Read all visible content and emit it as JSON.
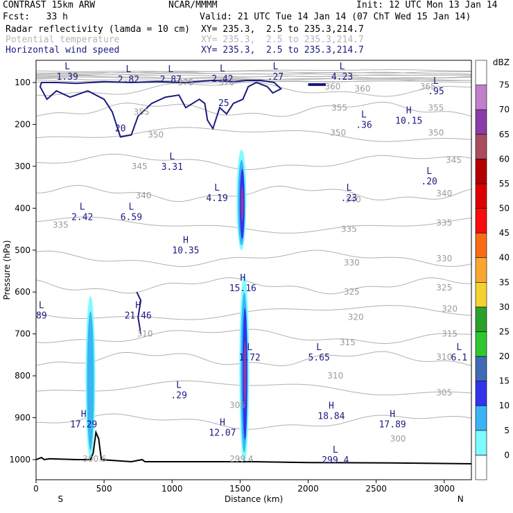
{
  "header": {
    "title": "CONTRAST 15km ARW",
    "org": "NCAR/MMMM",
    "init": "Init: 12 UTC Mon 13 Jan 14",
    "fcst": "Fcst:   33 h",
    "valid": "Valid: 21 UTC Tue 14 Jan 14 (07 ChT Wed 15 Jan 14)",
    "fields": [
      {
        "name": "Radar reflectivity (lamda = 10 cm)",
        "xy": "XY= 235.3,  2.5 to 235.3,214.7",
        "color": "#000000"
      },
      {
        "name": "Potential temperature",
        "xy": "XY= 235.3,  2.5 to 235.3,214.7",
        "color": "#b4b4b4"
      },
      {
        "name": "Horizontal wind speed",
        "xy": "XY= 235.3,  2.5 to 235.3,214.7",
        "color": "#1a1a80"
      }
    ]
  },
  "chart_data": {
    "type": "cross-section",
    "xlabel": "Distance (km)",
    "ylabel": "Pressure (hPa)",
    "xlim": [
      0,
      3200
    ],
    "ylim": [
      1050,
      70
    ],
    "x_ticks": [
      0,
      500,
      1000,
      1500,
      2000,
      2500,
      3000
    ],
    "y_ticks": [
      100,
      200,
      300,
      400,
      500,
      600,
      700,
      800,
      900,
      1000
    ],
    "x_end_labels": {
      "left": "S",
      "right": "N"
    },
    "colorbar": {
      "unit": "dBZ",
      "levels": [
        "0",
        "5",
        "10",
        "15",
        "20",
        "25",
        "30",
        "35",
        "40",
        "45",
        "50",
        "55",
        "60",
        "65",
        "70",
        "75"
      ],
      "colors": [
        "#ffffff",
        "#7ffbff",
        "#39b5f5",
        "#3333ee",
        "#3f6ab4",
        "#2ec830",
        "#2aa12a",
        "#f5d232",
        "#f8a830",
        "#f86c18",
        "#f80c0c",
        "#dc0000",
        "#b40000",
        "#a84c60",
        "#8c3ca8",
        "#c080c8",
        "#ffffff"
      ]
    },
    "theta_labels": [
      {
        "value": "375",
        "x": 1100,
        "p": 100
      },
      {
        "value": "370",
        "x": 1400,
        "p": 100
      },
      {
        "value": "360",
        "x": 2180,
        "p": 110
      },
      {
        "value": "360",
        "x": 2400,
        "p": 115
      },
      {
        "value": "365",
        "x": 2880,
        "p": 110
      },
      {
        "value": "355",
        "x": 775,
        "p": 170
      },
      {
        "value": "355",
        "x": 2230,
        "p": 160
      },
      {
        "value": "355",
        "x": 2940,
        "p": 160
      },
      {
        "value": "350",
        "x": 880,
        "p": 225
      },
      {
        "value": "350",
        "x": 2220,
        "p": 220
      },
      {
        "value": "350",
        "x": 2940,
        "p": 220
      },
      {
        "value": "345",
        "x": 760,
        "p": 300
      },
      {
        "value": "345",
        "x": 3070,
        "p": 285
      },
      {
        "value": "340",
        "x": 790,
        "p": 370
      },
      {
        "value": "340",
        "x": 2330,
        "p": 380
      },
      {
        "value": "340",
        "x": 3000,
        "p": 365
      },
      {
        "value": "335",
        "x": 180,
        "p": 440
      },
      {
        "value": "335",
        "x": 2300,
        "p": 450
      },
      {
        "value": "335",
        "x": 3000,
        "p": 435
      },
      {
        "value": "330",
        "x": 2320,
        "p": 530
      },
      {
        "value": "330",
        "x": 3000,
        "p": 520
      },
      {
        "value": "325",
        "x": 2320,
        "p": 600
      },
      {
        "value": "325",
        "x": 3000,
        "p": 590
      },
      {
        "value": "320",
        "x": 2350,
        "p": 660
      },
      {
        "value": "320",
        "x": 3040,
        "p": 640
      },
      {
        "value": "315",
        "x": 2290,
        "p": 720
      },
      {
        "value": "315",
        "x": 3040,
        "p": 700
      },
      {
        "value": "310",
        "x": 2200,
        "p": 800
      },
      {
        "value": "310",
        "x": 3000,
        "p": 755
      },
      {
        "value": "305",
        "x": 1480,
        "p": 870
      },
      {
        "value": "305",
        "x": 3000,
        "p": 840
      },
      {
        "value": "300",
        "x": 2660,
        "p": 950
      },
      {
        "value": "310",
        "x": 800,
        "p": 700
      }
    ],
    "wind_contours": [
      {
        "value": "20",
        "x": 620,
        "p": 210
      },
      {
        "value": "25",
        "x": 1380,
        "p": 150
      }
    ],
    "extrema": [
      {
        "type": "L",
        "value": "1.39",
        "x": 230,
        "p": 75
      },
      {
        "type": "L",
        "value": "2.82",
        "x": 680,
        "p": 82
      },
      {
        "type": "L",
        "value": "2.87",
        "x": 990,
        "p": 82
      },
      {
        "type": "L",
        "value": "2.42",
        "x": 1370,
        "p": 80
      },
      {
        "type": "L",
        "value": ".27",
        "x": 1760,
        "p": 75
      },
      {
        "type": "L",
        "value": "4.23",
        "x": 2250,
        "p": 75
      },
      {
        "type": "L",
        "value": ".95",
        "x": 2940,
        "p": 110
      },
      {
        "type": "L",
        "value": ".36",
        "x": 2410,
        "p": 190
      },
      {
        "type": "H",
        "value": "10.15",
        "x": 2740,
        "p": 180
      },
      {
        "type": "L",
        "value": "3.31",
        "x": 1000,
        "p": 290
      },
      {
        "type": "L",
        "value": "4.19",
        "x": 1330,
        "p": 365
      },
      {
        "type": "L",
        "value": ".23",
        "x": 2300,
        "p": 365
      },
      {
        "type": "L",
        "value": ".20",
        "x": 2890,
        "p": 325
      },
      {
        "type": "L",
        "value": "2.42",
        "x": 340,
        "p": 410
      },
      {
        "type": "L",
        "value": "6.59",
        "x": 700,
        "p": 410
      },
      {
        "type": "H",
        "value": "10.35",
        "x": 1100,
        "p": 490
      },
      {
        "type": "H",
        "value": "15.16",
        "x": 1520,
        "p": 580
      },
      {
        "type": "L",
        "value": "89",
        "x": 40,
        "p": 645
      },
      {
        "type": "H",
        "value": "21.46",
        "x": 750,
        "p": 645
      },
      {
        "type": "L",
        "value": "1.72",
        "x": 1570,
        "p": 745
      },
      {
        "type": "L",
        "value": "5.65",
        "x": 2080,
        "p": 745
      },
      {
        "type": "L",
        "value": "6.1",
        "x": 3110,
        "p": 745
      },
      {
        "type": "L",
        "value": ".29",
        "x": 1050,
        "p": 835
      },
      {
        "type": "H",
        "value": "18.84",
        "x": 2170,
        "p": 885
      },
      {
        "type": "H",
        "value": "17.29",
        "x": 350,
        "p": 905
      },
      {
        "type": "H",
        "value": "17.89",
        "x": 2620,
        "p": 905
      },
      {
        "type": "H",
        "value": "12.07",
        "x": 1370,
        "p": 925
      },
      {
        "type": "L",
        "value": "299.4",
        "x": 2200,
        "p": 990
      }
    ],
    "reflectivity_cells": [
      {
        "x": 1510,
        "p_top": 260,
        "p_bot": 500,
        "dbz_max": 20
      },
      {
        "x": 1530,
        "p_top": 560,
        "p_bot": 1010,
        "dbz_max": 20
      },
      {
        "x": 400,
        "p_top": 610,
        "p_bot": 1000,
        "dbz_max": 10
      }
    ],
    "faint_labels": [
      {
        "text": "300.6",
        "x": 430,
        "p": 998
      },
      {
        "text": "299.4",
        "x": 1510,
        "p": 998
      }
    ]
  }
}
